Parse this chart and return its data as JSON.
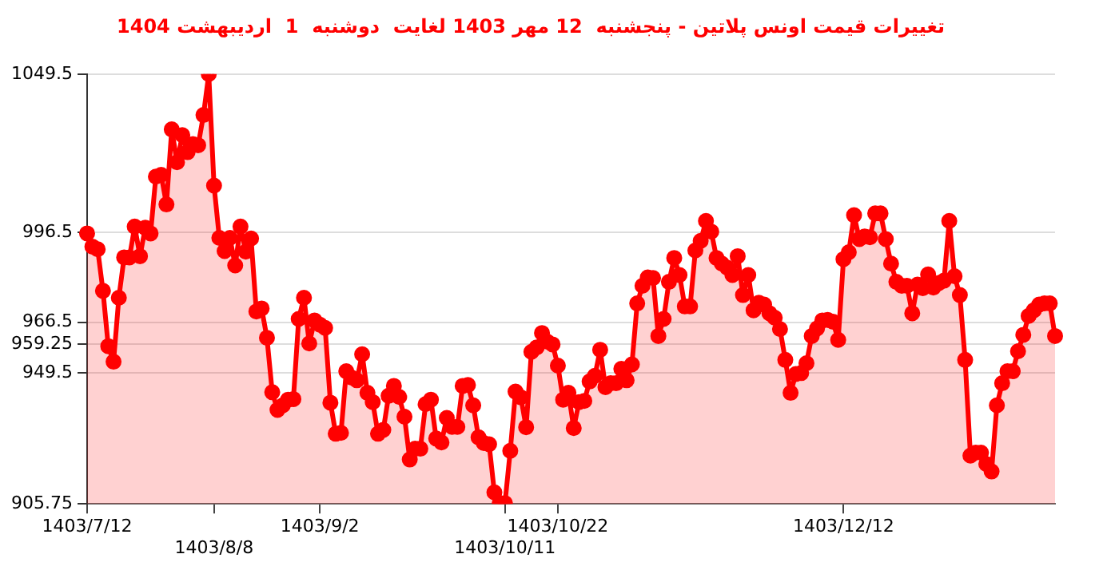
{
  "chart_data": {
    "type": "area",
    "title": "تغییرات قیمت اونس پلاتین - پنجشنبه  12 مهر 1403 لغایت  دوشنبه  1  اردیبهشت 1404",
    "categories": [
      "1403/7/12",
      null,
      null,
      null,
      null,
      null,
      null,
      null,
      null,
      null,
      null,
      null,
      null,
      null,
      null,
      null,
      null,
      null,
      null,
      null,
      null,
      null,
      null,
      null,
      "1403/8/8",
      null,
      null,
      null,
      null,
      null,
      null,
      null,
      null,
      null,
      null,
      null,
      null,
      null,
      null,
      null,
      null,
      null,
      null,
      null,
      "1403/9/2",
      null,
      null,
      null,
      null,
      null,
      null,
      null,
      null,
      null,
      null,
      null,
      null,
      null,
      null,
      null,
      null,
      null,
      null,
      null,
      null,
      null,
      null,
      null,
      null,
      null,
      null,
      null,
      null,
      null,
      null,
      null,
      null,
      null,
      null,
      "1403/10/11",
      null,
      null,
      null,
      null,
      null,
      null,
      null,
      null,
      null,
      "1403/10/22",
      null,
      null,
      null,
      null,
      null,
      null,
      null,
      null,
      null,
      null,
      null,
      null,
      null,
      null,
      null,
      null,
      null,
      null,
      null,
      null,
      null,
      null,
      null,
      null,
      null,
      null,
      null,
      null,
      null,
      null,
      null,
      null,
      null,
      null,
      null,
      null,
      null,
      null,
      null,
      null,
      null,
      null,
      null,
      null,
      null,
      null,
      null,
      null,
      null,
      null,
      null,
      null,
      null,
      "1403/12/12",
      null,
      null,
      null,
      null,
      null,
      null,
      null,
      null,
      null,
      null,
      null,
      null,
      null,
      null,
      null,
      null,
      null,
      null,
      null,
      null,
      null,
      null,
      null,
      null,
      null,
      null,
      null,
      null,
      null,
      null,
      null,
      null,
      null,
      null,
      null,
      null,
      null,
      null,
      null,
      null
    ],
    "series": [
      {
        "color": "#ff0000",
        "values": [
          996.2,
          991.8,
          990.9,
          977.0,
          958.5,
          953.3,
          974.7,
          988.2,
          988.2,
          998.5,
          988.6,
          998.1,
          996.2,
          1015.2,
          1015.8,
          1005.9,
          1031.0,
          1020.0,
          1029.1,
          1023.4,
          1026.1,
          1025.7,
          1035.8,
          1049.5,
          1012.2,
          994.7,
          990.3,
          994.7,
          985.5,
          998.5,
          990.1,
          994.5,
          970.1,
          971.1,
          961.3,
          943.1,
          937.2,
          938.7,
          940.6,
          940.8,
          967.6,
          974.7,
          959.4,
          967.1,
          965.7,
          964.6,
          939.6,
          929.2,
          929.5,
          950.1,
          948.0,
          947.1,
          955.8,
          942.9,
          939.8,
          929.2,
          930.5,
          941.9,
          945.2,
          941.5,
          934.9,
          920.6,
          924.2,
          924.2,
          939.1,
          940.6,
          927.6,
          926.3,
          934.5,
          931.5,
          931.5,
          945.2,
          945.5,
          938.7,
          928.0,
          926.1,
          925.7,
          909.6,
          906,
          906,
          923.5,
          943.3,
          941.4,
          931.4,
          956.6,
          958.1,
          962.9,
          960.0,
          959.1,
          952.0,
          940.6,
          942.9,
          931.1,
          939.8,
          940.2,
          946.7,
          948.6,
          957.3,
          944.8,
          946.1,
          946.1,
          950.9,
          947.1,
          952.4,
          972.8,
          978.7,
          981.5,
          981.3,
          961.9,
          967.6,
          980.0,
          988.0,
          982.3,
          971.8,
          971.8,
          990.5,
          993.7,
          1000.4,
          996.8,
          988.0,
          986.1,
          984.8,
          982.3,
          988.6,
          975.6,
          982.3,
          970.5,
          973.0,
          972.4,
          969.5,
          968.0,
          964.2,
          953.9,
          942.9,
          949.2,
          949.5,
          952.8,
          961.9,
          964.4,
          967.1,
          967.3,
          966.7,
          960.6,
          987.6,
          989.9,
          1002.3,
          994.3,
          995.2,
          994.9,
          1002.9,
          1002.9,
          994.3,
          986.1,
          980.0,
          978.7,
          978.7,
          969.5,
          979.1,
          977.9,
          982.5,
          978.1,
          979.6,
          980.4,
          1000.4,
          981.9,
          975.6,
          953.9,
          921.9,
          922.9,
          922.9,
          919.1,
          916.6,
          938.7,
          946.1,
          950.1,
          950.1,
          956.8,
          962.3,
          968.6,
          970.5,
          972.4,
          972.8,
          972.8,
          961.9
        ]
      }
    ],
    "ylim": [
      905.75,
      1049.5
    ],
    "yticks": [
      905.75,
      949.5,
      959.25,
      966.5,
      996.5,
      1049.5
    ],
    "grid": "y",
    "legend": false,
    "marker": "circle",
    "line_style": "solid"
  }
}
